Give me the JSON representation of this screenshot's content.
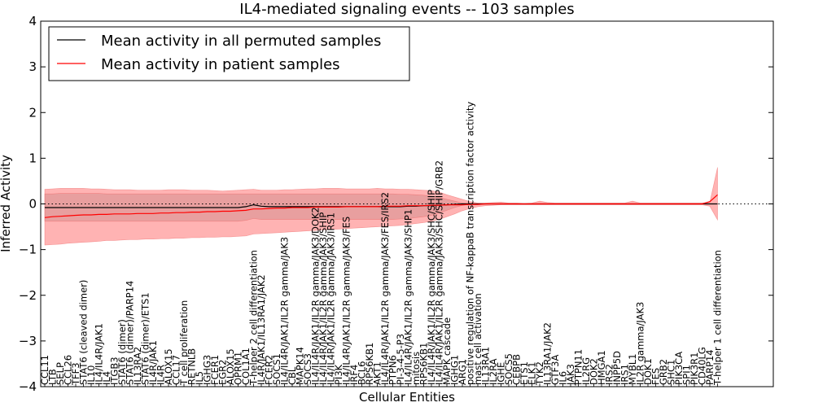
{
  "chart_data": {
    "type": "line",
    "title": "IL4-mediated signaling events -- 103 samples",
    "xlabel": "Cellular Entities",
    "ylabel": "Inferred Activity",
    "ylim": [
      -4,
      4
    ],
    "yticks": [
      -4,
      -3,
      -2,
      -1,
      0,
      1,
      2,
      3,
      4
    ],
    "ytick_labels": [
      "−4",
      "−3",
      "−2",
      "−1",
      "0",
      "1",
      "2",
      "3",
      "4"
    ],
    "grid": false,
    "legend_position": "top-left",
    "reference_line": {
      "y": 0,
      "style": "dotted",
      "color": "#000000"
    },
    "categories": [
      "CCL11",
      "LTB",
      "SELP",
      "CCL26",
      "TFF3",
      "STAT6 (cleaved dimer)",
      "IL10",
      "IL4/IL4R/JAK1",
      "IL4",
      "ITGB3",
      "STAT6 (dimer)",
      "STAT6 (dimer)/PARP14",
      "IL13RA2",
      "STAT6 (dimer)/ETS1",
      "IL4R/JAK1",
      "IL4R",
      "ALOX15",
      "CCL17",
      "T cell proliferation",
      "RETNLB",
      "IL5",
      "IGHG3",
      "FCER1",
      "EGR2",
      "ALOX15",
      "OPRM1",
      "COL1A1",
      "T-helper 2 cell differentiation",
      "IL4R/JAK1/IL13RA1/JAK2",
      "FCER2",
      "SOCS1",
      "IL4/IL4R/JAK1/IL2R gamma/JAK3",
      "CBL",
      "MAPK14",
      "SOCS3",
      "IL4/IL4R/JAK1/IL2R gamma/JAK3/DOK2",
      "IL4/IL4R/JAK1/IL2R gamma/JAK3/SHIP",
      "IL4/IL4R/JAK1/IL2R gamma/JAK3/IRS1",
      "PI3K",
      "IL4/IL4R/JAK1/IL2R gamma/JAK3/FES",
      "IRF4",
      "BCL6",
      "RPS6KB1",
      "AKT1",
      "IL4/IL4R/JAK1/IL2R gamma/JAK3/FES/IRS2",
      "PTPN6",
      "PI-3-4-5-P3",
      "IL4/IL4R/JAK1/IL2R gamma/JAK3/SHP1",
      "mitosis",
      "RPS6KB1",
      "IL4/IL4R/JAK1/IL2R gamma/JAK3/SHC/SHIP",
      "IL4/IL4R/JAK1/IL2R gamma/JAK3/SHC/SHIP/GRB2",
      "MAPK cascade",
      "IGHG1",
      "ARG1",
      "positive regulation of NF-kappaB transcription factor activity",
      "mast cell activation",
      "IL13RA1",
      "IL2RA",
      "IGHE",
      "SOCS5",
      "CEBPB",
      "ETS1",
      "ELK1",
      "TYK2",
      "IL13RA1/JAK2",
      "GTF3A",
      "IL6",
      "JAK3",
      "PTPN11",
      "IL2RG",
      "DOK2",
      "HMGA1",
      "IRS2",
      "INPP5D",
      "IRS1",
      "MYBL1",
      "IL2R gamma/JAK3",
      "DOK1",
      "FES",
      "GRB2",
      "SHC1",
      "PIK3CA",
      "SPI1",
      "PIK3R1",
      "CD40LG",
      "PARP14",
      "T-helper 1 cell differentiation"
    ],
    "label_index_step": 1.0,
    "series": [
      {
        "name": "Mean activity in all permuted samples",
        "color": "#000000",
        "values": [
          -0.08,
          -0.08,
          -0.08,
          -0.08,
          -0.08,
          -0.08,
          -0.08,
          -0.08,
          -0.08,
          -0.08,
          -0.08,
          -0.08,
          -0.08,
          -0.08,
          -0.08,
          -0.08,
          -0.08,
          -0.08,
          -0.08,
          -0.08,
          -0.08,
          -0.08,
          -0.08,
          -0.08,
          -0.08,
          -0.08,
          -0.06,
          -0.02,
          -0.05,
          -0.06,
          -0.06,
          -0.06,
          -0.06,
          -0.06,
          -0.06,
          -0.06,
          -0.06,
          -0.06,
          -0.06,
          -0.06,
          -0.06,
          -0.06,
          -0.06,
          -0.06,
          -0.06,
          -0.06,
          -0.06,
          -0.05,
          -0.05,
          -0.04,
          -0.04,
          -0.03,
          -0.02,
          -0.01,
          0.0,
          0.0,
          0.0,
          0.0,
          0.0,
          0.0,
          0.0,
          0.0,
          0.0,
          0.0,
          0.0,
          0.0,
          0.0,
          0.0,
          0.0,
          0.0,
          0.0,
          0.0,
          0.0,
          0.0,
          0.0,
          0.0,
          0.0,
          0.0,
          0.0,
          0.0,
          0.0,
          0.0,
          0.0,
          0.0,
          0.0,
          0.0,
          0.0,
          0.0
        ]
      },
      {
        "name": "Mean activity in patient samples",
        "color": "#ff0000",
        "values": [
          -0.3,
          -0.28,
          -0.27,
          -0.26,
          -0.25,
          -0.24,
          -0.24,
          -0.23,
          -0.23,
          -0.22,
          -0.22,
          -0.22,
          -0.21,
          -0.21,
          -0.21,
          -0.2,
          -0.2,
          -0.19,
          -0.19,
          -0.18,
          -0.18,
          -0.17,
          -0.17,
          -0.16,
          -0.16,
          -0.15,
          -0.14,
          -0.11,
          -0.11,
          -0.1,
          -0.09,
          -0.09,
          -0.08,
          -0.08,
          -0.08,
          -0.07,
          -0.07,
          -0.07,
          -0.07,
          -0.06,
          -0.06,
          -0.06,
          -0.06,
          -0.06,
          -0.05,
          -0.05,
          -0.05,
          -0.04,
          -0.04,
          -0.04,
          -0.03,
          -0.03,
          -0.02,
          -0.02,
          -0.02,
          -0.01,
          -0.01,
          0.0,
          0.0,
          0.0,
          0.0,
          0.0,
          0.0,
          0.0,
          0.0,
          0.0,
          0.0,
          0.0,
          0.0,
          0.0,
          0.0,
          0.0,
          0.0,
          0.0,
          0.0,
          0.0,
          0.0,
          0.0,
          0.0,
          0.0,
          0.0,
          0.0,
          0.0,
          0.0,
          0.0,
          0.0,
          0.05,
          0.2
        ]
      }
    ],
    "bands": [
      {
        "name": "patient spread",
        "color": "#ff9999",
        "upper": [
          0.32,
          0.33,
          0.34,
          0.34,
          0.34,
          0.34,
          0.33,
          0.33,
          0.32,
          0.31,
          0.31,
          0.31,
          0.3,
          0.3,
          0.3,
          0.3,
          0.31,
          0.31,
          0.31,
          0.3,
          0.3,
          0.3,
          0.29,
          0.28,
          0.29,
          0.3,
          0.31,
          0.32,
          0.3,
          0.3,
          0.3,
          0.31,
          0.31,
          0.32,
          0.33,
          0.33,
          0.34,
          0.34,
          0.34,
          0.33,
          0.33,
          0.33,
          0.33,
          0.34,
          0.33,
          0.33,
          0.32,
          0.32,
          0.31,
          0.3,
          0.29,
          0.26,
          0.2,
          0.15,
          0.1,
          0.05,
          0.02,
          0.02,
          0.03,
          0.04,
          0.02,
          0.02,
          0.01,
          0.02,
          0.06,
          0.03,
          0.02,
          0.02,
          0.02,
          0.02,
          0.02,
          0.02,
          0.02,
          0.02,
          0.02,
          0.02,
          0.06,
          0.02,
          0.02,
          0.02,
          0.02,
          0.02,
          0.02,
          0.02,
          0.02,
          0.02,
          0.03,
          0.8
        ],
        "lower": [
          -0.9,
          -0.89,
          -0.88,
          -0.86,
          -0.85,
          -0.84,
          -0.83,
          -0.82,
          -0.8,
          -0.8,
          -0.79,
          -0.78,
          -0.78,
          -0.77,
          -0.77,
          -0.76,
          -0.76,
          -0.75,
          -0.75,
          -0.74,
          -0.74,
          -0.73,
          -0.73,
          -0.72,
          -0.72,
          -0.71,
          -0.7,
          -0.66,
          -0.65,
          -0.64,
          -0.63,
          -0.62,
          -0.61,
          -0.6,
          -0.59,
          -0.58,
          -0.57,
          -0.56,
          -0.55,
          -0.54,
          -0.53,
          -0.52,
          -0.51,
          -0.5,
          -0.49,
          -0.48,
          -0.47,
          -0.45,
          -0.43,
          -0.41,
          -0.38,
          -0.34,
          -0.28,
          -0.22,
          -0.15,
          -0.1,
          -0.06,
          -0.04,
          -0.03,
          -0.02,
          -0.02,
          -0.02,
          -0.02,
          -0.02,
          -0.02,
          -0.02,
          -0.02,
          -0.02,
          -0.02,
          -0.02,
          -0.02,
          -0.02,
          -0.02,
          -0.02,
          -0.02,
          -0.02,
          -0.02,
          -0.02,
          -0.02,
          -0.02,
          -0.02,
          -0.02,
          -0.02,
          -0.02,
          -0.02,
          -0.02,
          -0.05,
          -0.35
        ]
      },
      {
        "name": "permuted spread",
        "color": "#cc8888",
        "upper": [
          0.22,
          0.22,
          0.23,
          0.23,
          0.23,
          0.23,
          0.23,
          0.23,
          0.22,
          0.22,
          0.22,
          0.22,
          0.22,
          0.22,
          0.22,
          0.22,
          0.22,
          0.22,
          0.22,
          0.22,
          0.22,
          0.22,
          0.22,
          0.22,
          0.22,
          0.22,
          0.22,
          0.22,
          0.22,
          0.22,
          0.22,
          0.22,
          0.22,
          0.22,
          0.22,
          0.22,
          0.22,
          0.22,
          0.22,
          0.22,
          0.22,
          0.22,
          0.22,
          0.22,
          0.22,
          0.22,
          0.21,
          0.21,
          0.2,
          0.19,
          0.17,
          0.14,
          0.1,
          0.06,
          0.02,
          0.01,
          0.0,
          0.0,
          0.0,
          0.0,
          0.0,
          0.0,
          0.0,
          0.0,
          0.0,
          0.0,
          0.0,
          0.0,
          0.0,
          0.0,
          0.0,
          0.0,
          0.0,
          0.0,
          0.0,
          0.0,
          0.0,
          0.0,
          0.0,
          0.0,
          0.0,
          0.0,
          0.0,
          0.0,
          0.0,
          0.0,
          0.0,
          0.0
        ],
        "lower": [
          -0.38,
          -0.38,
          -0.38,
          -0.38,
          -0.38,
          -0.38,
          -0.38,
          -0.38,
          -0.38,
          -0.38,
          -0.38,
          -0.38,
          -0.38,
          -0.38,
          -0.38,
          -0.38,
          -0.38,
          -0.38,
          -0.38,
          -0.38,
          -0.38,
          -0.38,
          -0.38,
          -0.38,
          -0.38,
          -0.38,
          -0.36,
          -0.32,
          -0.34,
          -0.34,
          -0.34,
          -0.34,
          -0.34,
          -0.34,
          -0.34,
          -0.34,
          -0.34,
          -0.34,
          -0.34,
          -0.34,
          -0.34,
          -0.34,
          -0.34,
          -0.34,
          -0.34,
          -0.34,
          -0.33,
          -0.32,
          -0.3,
          -0.28,
          -0.25,
          -0.2,
          -0.14,
          -0.08,
          -0.03,
          -0.01,
          0.0,
          0.0,
          0.0,
          0.0,
          0.0,
          0.0,
          0.0,
          0.0,
          0.0,
          0.0,
          0.0,
          0.0,
          0.0,
          0.0,
          0.0,
          0.0,
          0.0,
          0.0,
          0.0,
          0.0,
          0.0,
          0.0,
          0.0,
          0.0,
          0.0,
          0.0,
          0.0,
          0.0,
          0.0,
          0.0,
          0.0,
          0.0
        ]
      }
    ]
  }
}
